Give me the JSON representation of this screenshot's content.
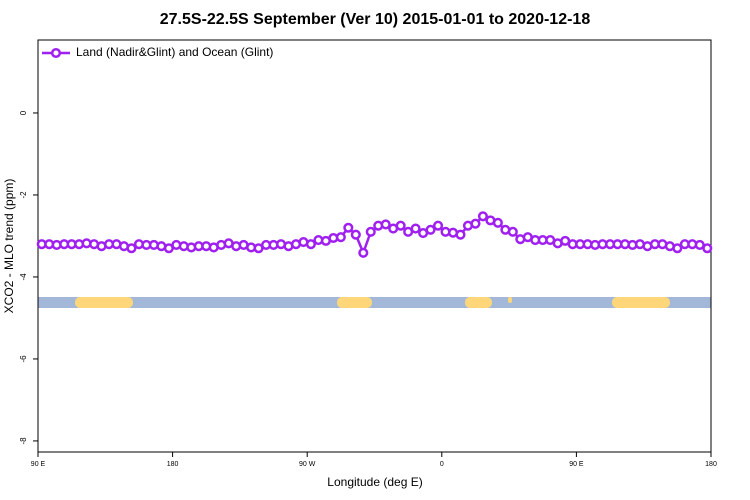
{
  "chart_data": {
    "type": "line",
    "title": "27.5S-22.5S September (Ver 10)   2015-01-01 to 2020-12-18",
    "x_label": "Longitude (deg E)",
    "y_label": "XCO2 - MLO trend (ppm)",
    "xlim": [
      90,
      540
    ],
    "ylim": [
      -8.27,
      1.78
    ],
    "xticks": [
      {
        "value": 90,
        "label": "90 E"
      },
      180,
      {
        "value": 270,
        "label": "90 W"
      },
      {
        "value": 360,
        "label": "0"
      },
      {
        "value": 450,
        "label": "90 E"
      },
      {
        "value": 540,
        "label": "180"
      }
    ],
    "yticks": [
      0,
      -2,
      -4,
      -6,
      -8
    ],
    "legend": "top-left",
    "x": [
      92.5,
      97.5,
      102.5,
      107.5,
      112.5,
      117.5,
      122.5,
      127.5,
      132.5,
      137.5,
      142.5,
      147.5,
      152.5,
      157.5,
      162.5,
      167.5,
      172.5,
      177.5,
      182.5,
      187.5,
      192.5,
      197.5,
      202.5,
      207.5,
      212.5,
      217.5,
      222.5,
      227.5,
      232.5,
      237.5,
      242.5,
      247.5,
      252.5,
      257.5,
      262.5,
      267.5,
      272.5,
      277.5,
      282.5,
      287.5,
      292.5,
      297.5,
      302.5,
      307.5,
      312.5,
      317.5,
      322.5,
      327.5,
      332.5,
      337.5,
      342.5,
      347.5,
      352.5,
      357.5,
      362.5,
      367.5,
      372.5,
      377.5,
      382.5,
      387.5,
      392.5,
      397.5,
      402.5,
      407.5,
      412.5,
      417.5,
      422.5,
      427.5,
      432.5,
      437.5,
      442.5,
      447.5,
      452.5,
      457.5,
      462.5,
      467.5,
      472.5,
      477.5,
      482.5,
      487.5,
      492.5,
      497.5,
      502.5,
      507.5,
      512.5,
      517.5,
      522.5,
      527.5,
      532.5,
      537.5
    ],
    "series": [
      {
        "name": "Land (Nadir&Glint) and Ocean (Glint)",
        "color": "#a020f0",
        "values": [
          -3.2,
          -3.2,
          -3.22,
          -3.2,
          -3.2,
          -3.2,
          -3.18,
          -3.2,
          -3.25,
          -3.2,
          -3.2,
          -3.25,
          -3.3,
          -3.2,
          -3.22,
          -3.22,
          -3.25,
          -3.3,
          -3.22,
          -3.25,
          -3.28,
          -3.25,
          -3.25,
          -3.28,
          -3.22,
          -3.18,
          -3.25,
          -3.22,
          -3.28,
          -3.3,
          -3.22,
          -3.22,
          -3.2,
          -3.25,
          -3.2,
          -3.15,
          -3.2,
          -3.1,
          -3.12,
          -3.05,
          -3.03,
          -2.8,
          -2.97,
          -3.41,
          -2.9,
          -2.75,
          -2.72,
          -2.82,
          -2.75,
          -2.9,
          -2.82,
          -2.93,
          -2.85,
          -2.75,
          -2.9,
          -2.92,
          -2.97,
          -2.75,
          -2.7,
          -2.52,
          -2.62,
          -2.68,
          -2.85,
          -2.9,
          -3.08,
          -3.03,
          -3.1,
          -3.1,
          -3.1,
          -3.18,
          -3.12,
          -3.2,
          -3.2,
          -3.2,
          -3.22,
          -3.2,
          -3.2,
          -3.2,
          -3.2,
          -3.22,
          -3.2,
          -3.25,
          -3.2,
          -3.2,
          -3.25,
          -3.3,
          -3.2,
          -3.2,
          -3.22,
          -3.3
        ]
      }
    ]
  }
}
